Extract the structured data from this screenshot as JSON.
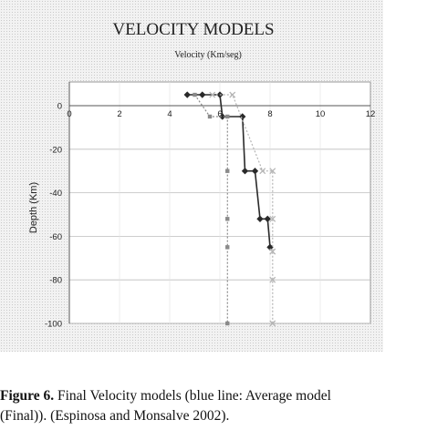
{
  "figure": {
    "caption_label": "Figure 6.",
    "caption_line1": " Final Velocity models (blue line: Average model",
    "caption_line2": "(Final)). (Espinosa and Monsalve 2002)."
  },
  "chart_data": {
    "type": "line",
    "title": "VELOCITY MODELS",
    "xlabel": "Velocity (Km/seg)",
    "ylabel": "Depth (Km)",
    "xlim": [
      0,
      12
    ],
    "ylim": [
      -100,
      0
    ],
    "x_ticks": [
      0,
      2,
      4,
      6,
      8,
      10,
      12
    ],
    "y_ticks": [
      0,
      -20,
      -40,
      -60,
      -80,
      -100
    ],
    "x_axis_position": "top",
    "grid": true,
    "legend": "none",
    "series": [
      {
        "style": "dark-solid-with-diamonds",
        "color": "#2a2a2a",
        "points": [
          [
            4.7,
            5
          ],
          [
            5.3,
            5
          ],
          [
            6.0,
            5
          ],
          [
            6.1,
            -5
          ],
          [
            6.9,
            -5
          ],
          [
            7.0,
            -30
          ],
          [
            7.4,
            -30
          ],
          [
            7.6,
            -52
          ],
          [
            7.9,
            -52
          ],
          [
            8.0,
            -65
          ]
        ]
      },
      {
        "style": "gray-dotted-with-squares",
        "color": "#8a8a8a",
        "points": [
          [
            5.0,
            5
          ],
          [
            5.6,
            -5
          ],
          [
            6.3,
            -5
          ],
          [
            6.3,
            -30
          ],
          [
            6.3,
            -52
          ],
          [
            6.3,
            -65
          ],
          [
            6.3,
            -100
          ]
        ]
      },
      {
        "style": "light-dotted-with-crosses",
        "color": "#b5b5b5",
        "points": [
          [
            5.7,
            5
          ],
          [
            6.5,
            5
          ],
          [
            7.7,
            -30
          ],
          [
            8.1,
            -30
          ],
          [
            8.1,
            -52
          ],
          [
            8.1,
            -67
          ],
          [
            8.1,
            -80
          ],
          [
            8.1,
            -100
          ]
        ]
      }
    ]
  }
}
